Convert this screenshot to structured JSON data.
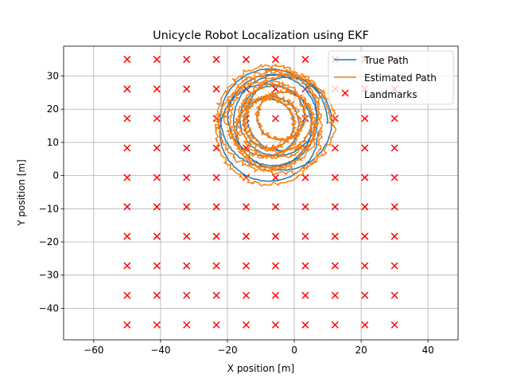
{
  "chart_data": {
    "type": "scatter",
    "title": "Unicycle Robot Localization using EKF",
    "xlabel": "X position [m]",
    "ylabel": "Y position [m]",
    "xlim": [
      -69,
      49
    ],
    "ylim": [
      -49.5,
      39
    ],
    "xticks": [
      -60,
      -40,
      -20,
      0,
      20,
      40
    ],
    "yticks": [
      -40,
      -30,
      -20,
      -10,
      0,
      10,
      20,
      30
    ],
    "xtick_labels": [
      "−60",
      "−40",
      "−20",
      "0",
      "20",
      "40"
    ],
    "ytick_labels": [
      "−40",
      "−30",
      "−20",
      "−10",
      "0",
      "10",
      "20",
      "30"
    ],
    "grid": true,
    "legend": {
      "position": "top-right",
      "entries": [
        "True Path",
        "Estimated Path",
        "Landmarks"
      ]
    },
    "colors": {
      "true_path": "#1f77b4",
      "estimated_path": "#ff7f0e",
      "landmarks": "#ff0000"
    },
    "series": [
      {
        "name": "Landmarks",
        "marker": "x",
        "x_values": [
          -50,
          -41.1,
          -32.2,
          -23.3,
          -14.4,
          -5.6,
          3.3,
          12.2,
          21.1,
          30
        ],
        "y_values": [
          -45,
          -36.1,
          -27.2,
          -18.3,
          -9.4,
          -0.6,
          8.3,
          17.2,
          26.1,
          35
        ]
      },
      {
        "name": "True Path",
        "marker": "line",
        "center": [
          -6.5,
          15.5
        ],
        "radius_range": [
          7,
          15
        ]
      },
      {
        "name": "Estimated Path",
        "marker": "line",
        "center": [
          -6.5,
          15.5
        ],
        "radius_range": [
          7,
          16
        ],
        "x_range": [
          -21,
          7.5
        ],
        "y_range": [
          -1,
          31
        ]
      }
    ]
  }
}
